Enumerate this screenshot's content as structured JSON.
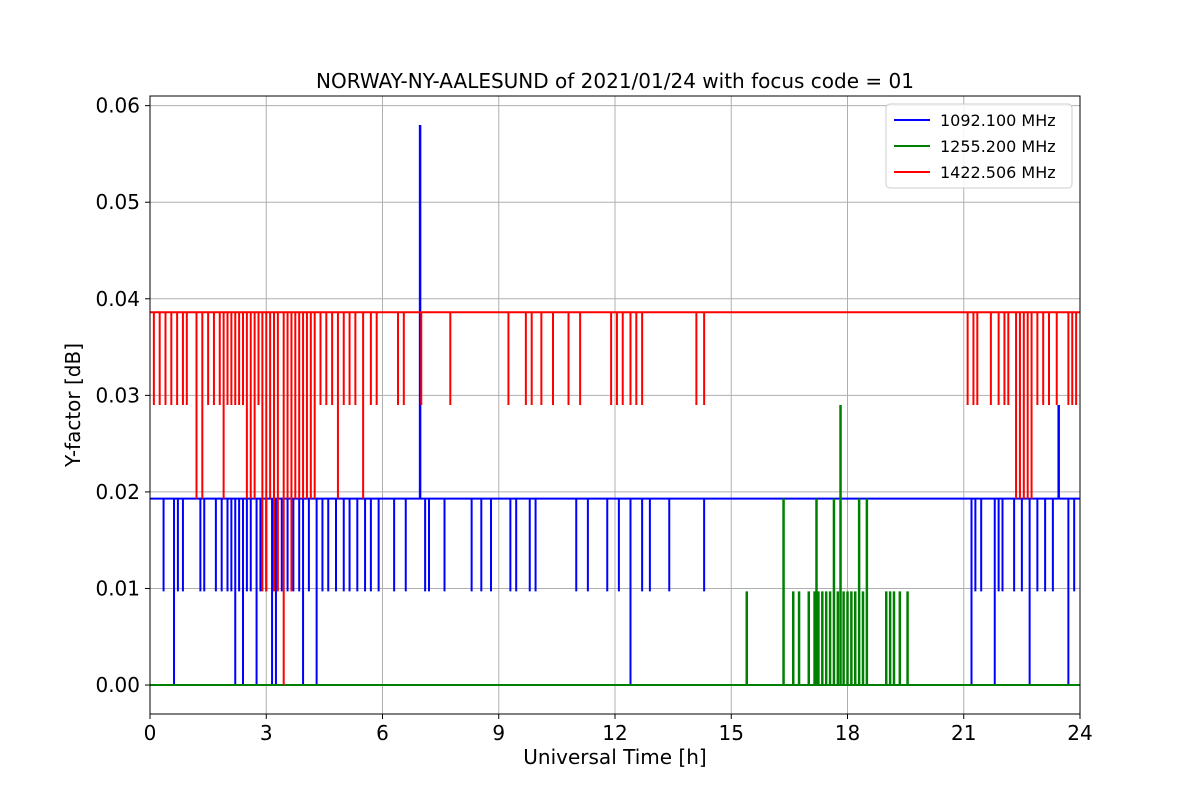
{
  "chart_data": {
    "type": "line",
    "title": "NORWAY-NY-AALESUND of 2021/01/24 with focus code = 01",
    "xlabel": "Universal Time [h]",
    "ylabel": "Y-factor [dB]",
    "xlim": [
      0,
      24
    ],
    "ylim": [
      -0.003,
      0.061
    ],
    "xticks": [
      0,
      3,
      6,
      9,
      12,
      15,
      18,
      21,
      24
    ],
    "xtick_labels": [
      "0",
      "3",
      "6",
      "9",
      "12",
      "15",
      "18",
      "21",
      "24"
    ],
    "yticks": [
      0.0,
      0.01,
      0.02,
      0.03,
      0.04,
      0.05,
      0.06
    ],
    "ytick_labels": [
      "0.00",
      "0.01",
      "0.02",
      "0.03",
      "0.04",
      "0.05",
      "0.06"
    ],
    "grid": true,
    "legend_position": "top-right",
    "series": [
      {
        "name": "1092.100 MHz",
        "color": "#0000ff",
        "baseline": 0.0193,
        "dips": [
          {
            "x": 0.35,
            "y": 0.0097
          },
          {
            "x": 0.62,
            "y": 0.0
          },
          {
            "x": 0.72,
            "y": 0.0097
          },
          {
            "x": 0.85,
            "y": 0.0097
          },
          {
            "x": 1.3,
            "y": 0.0097
          },
          {
            "x": 1.4,
            "y": 0.0097
          },
          {
            "x": 1.7,
            "y": 0.0097
          },
          {
            "x": 1.85,
            "y": 0.0097
          },
          {
            "x": 2.0,
            "y": 0.0097
          },
          {
            "x": 2.1,
            "y": 0.0097
          },
          {
            "x": 2.2,
            "y": 0.0
          },
          {
            "x": 2.3,
            "y": 0.0097
          },
          {
            "x": 2.4,
            "y": 0.0
          },
          {
            "x": 2.5,
            "y": 0.0097
          },
          {
            "x": 2.6,
            "y": 0.0097
          },
          {
            "x": 2.75,
            "y": 0.0
          },
          {
            "x": 2.85,
            "y": 0.0097
          },
          {
            "x": 3.0,
            "y": 0.0097
          },
          {
            "x": 3.15,
            "y": 0.0
          },
          {
            "x": 3.25,
            "y": 0.0
          },
          {
            "x": 3.4,
            "y": 0.0097
          },
          {
            "x": 3.55,
            "y": 0.0097
          },
          {
            "x": 3.7,
            "y": 0.0097
          },
          {
            "x": 3.85,
            "y": 0.0097
          },
          {
            "x": 3.95,
            "y": 0.0
          },
          {
            "x": 4.1,
            "y": 0.0097
          },
          {
            "x": 4.3,
            "y": 0.0
          },
          {
            "x": 4.45,
            "y": 0.0097
          },
          {
            "x": 4.6,
            "y": 0.0097
          },
          {
            "x": 4.8,
            "y": 0.0097
          },
          {
            "x": 5.0,
            "y": 0.0097
          },
          {
            "x": 5.15,
            "y": 0.0097
          },
          {
            "x": 5.35,
            "y": 0.0097
          },
          {
            "x": 5.55,
            "y": 0.0097
          },
          {
            "x": 5.7,
            "y": 0.0097
          },
          {
            "x": 5.9,
            "y": 0.0097
          },
          {
            "x": 6.3,
            "y": 0.0097
          },
          {
            "x": 6.6,
            "y": 0.0097
          },
          {
            "x": 7.1,
            "y": 0.0097
          },
          {
            "x": 7.2,
            "y": 0.0097
          },
          {
            "x": 7.6,
            "y": 0.0097
          },
          {
            "x": 8.3,
            "y": 0.0097
          },
          {
            "x": 8.55,
            "y": 0.0097
          },
          {
            "x": 8.8,
            "y": 0.0097
          },
          {
            "x": 9.3,
            "y": 0.0097
          },
          {
            "x": 9.45,
            "y": 0.0097
          },
          {
            "x": 9.8,
            "y": 0.0097
          },
          {
            "x": 9.95,
            "y": 0.0097
          },
          {
            "x": 11.0,
            "y": 0.0097
          },
          {
            "x": 11.3,
            "y": 0.0097
          },
          {
            "x": 11.8,
            "y": 0.0097
          },
          {
            "x": 12.1,
            "y": 0.0097
          },
          {
            "x": 12.4,
            "y": 0.0
          },
          {
            "x": 12.7,
            "y": 0.0097
          },
          {
            "x": 12.9,
            "y": 0.0097
          },
          {
            "x": 13.4,
            "y": 0.0097
          },
          {
            "x": 14.3,
            "y": 0.0097
          },
          {
            "x": 21.2,
            "y": 0.0
          },
          {
            "x": 21.3,
            "y": 0.0097
          },
          {
            "x": 21.45,
            "y": 0.0097
          },
          {
            "x": 21.8,
            "y": 0.0
          },
          {
            "x": 21.9,
            "y": 0.0097
          },
          {
            "x": 22.0,
            "y": 0.0097
          },
          {
            "x": 22.3,
            "y": 0.0097
          },
          {
            "x": 22.5,
            "y": 0.0097
          },
          {
            "x": 22.7,
            "y": 0.0
          },
          {
            "x": 22.9,
            "y": 0.0097
          },
          {
            "x": 23.1,
            "y": 0.0097
          },
          {
            "x": 23.3,
            "y": 0.0097
          },
          {
            "x": 23.7,
            "y": 0.0
          },
          {
            "x": 23.85,
            "y": 0.0097
          }
        ],
        "spikes": [
          {
            "x": 6.97,
            "y": 0.058
          },
          {
            "x": 23.45,
            "y": 0.029
          }
        ]
      },
      {
        "name": "1255.200 MHz",
        "color": "#008000",
        "baseline": 0.0,
        "spikes": [
          {
            "x": 15.4,
            "y": 0.0097
          },
          {
            "x": 16.35,
            "y": 0.0193
          },
          {
            "x": 16.6,
            "y": 0.0097
          },
          {
            "x": 16.75,
            "y": 0.0097
          },
          {
            "x": 17.0,
            "y": 0.0097
          },
          {
            "x": 17.15,
            "y": 0.0097
          },
          {
            "x": 17.2,
            "y": 0.0193
          },
          {
            "x": 17.25,
            "y": 0.0097
          },
          {
            "x": 17.35,
            "y": 0.0097
          },
          {
            "x": 17.45,
            "y": 0.0097
          },
          {
            "x": 17.55,
            "y": 0.0097
          },
          {
            "x": 17.65,
            "y": 0.0193
          },
          {
            "x": 17.75,
            "y": 0.0097
          },
          {
            "x": 17.82,
            "y": 0.029
          },
          {
            "x": 17.9,
            "y": 0.0097
          },
          {
            "x": 18.0,
            "y": 0.0097
          },
          {
            "x": 18.1,
            "y": 0.0097
          },
          {
            "x": 18.2,
            "y": 0.0097
          },
          {
            "x": 18.3,
            "y": 0.0193
          },
          {
            "x": 18.4,
            "y": 0.0097
          },
          {
            "x": 18.5,
            "y": 0.0193
          },
          {
            "x": 19.0,
            "y": 0.0097
          },
          {
            "x": 19.1,
            "y": 0.0097
          },
          {
            "x": 19.2,
            "y": 0.0097
          },
          {
            "x": 19.35,
            "y": 0.0097
          },
          {
            "x": 19.55,
            "y": 0.0097
          }
        ]
      },
      {
        "name": "1422.506 MHz",
        "color": "#ff0000",
        "baseline": 0.0386,
        "dips": [
          {
            "x": 0.1,
            "y": 0.029
          },
          {
            "x": 0.25,
            "y": 0.029
          },
          {
            "x": 0.4,
            "y": 0.029
          },
          {
            "x": 0.55,
            "y": 0.029
          },
          {
            "x": 0.7,
            "y": 0.029
          },
          {
            "x": 0.85,
            "y": 0.029
          },
          {
            "x": 0.95,
            "y": 0.029
          },
          {
            "x": 1.2,
            "y": 0.0193
          },
          {
            "x": 1.35,
            "y": 0.0193
          },
          {
            "x": 1.5,
            "y": 0.029
          },
          {
            "x": 1.65,
            "y": 0.029
          },
          {
            "x": 1.8,
            "y": 0.029
          },
          {
            "x": 1.9,
            "y": 0.0193
          },
          {
            "x": 2.0,
            "y": 0.029
          },
          {
            "x": 2.1,
            "y": 0.029
          },
          {
            "x": 2.2,
            "y": 0.029
          },
          {
            "x": 2.3,
            "y": 0.029
          },
          {
            "x": 2.4,
            "y": 0.029
          },
          {
            "x": 2.5,
            "y": 0.0193
          },
          {
            "x": 2.6,
            "y": 0.0193
          },
          {
            "x": 2.7,
            "y": 0.0193
          },
          {
            "x": 2.8,
            "y": 0.029
          },
          {
            "x": 2.9,
            "y": 0.0097
          },
          {
            "x": 3.0,
            "y": 0.0097
          },
          {
            "x": 3.1,
            "y": 0.0193
          },
          {
            "x": 3.2,
            "y": 0.0097
          },
          {
            "x": 3.3,
            "y": 0.0097
          },
          {
            "x": 3.45,
            "y": 0.0
          },
          {
            "x": 3.55,
            "y": 0.0193
          },
          {
            "x": 3.65,
            "y": 0.0097
          },
          {
            "x": 3.75,
            "y": 0.0193
          },
          {
            "x": 3.85,
            "y": 0.0193
          },
          {
            "x": 3.95,
            "y": 0.0193
          },
          {
            "x": 4.05,
            "y": 0.0193
          },
          {
            "x": 4.15,
            "y": 0.0193
          },
          {
            "x": 4.25,
            "y": 0.0193
          },
          {
            "x": 4.4,
            "y": 0.029
          },
          {
            "x": 4.55,
            "y": 0.029
          },
          {
            "x": 4.7,
            "y": 0.029
          },
          {
            "x": 4.85,
            "y": 0.0193
          },
          {
            "x": 5.0,
            "y": 0.029
          },
          {
            "x": 5.15,
            "y": 0.029
          },
          {
            "x": 5.3,
            "y": 0.029
          },
          {
            "x": 5.5,
            "y": 0.0193
          },
          {
            "x": 5.7,
            "y": 0.029
          },
          {
            "x": 5.85,
            "y": 0.029
          },
          {
            "x": 6.4,
            "y": 0.029
          },
          {
            "x": 6.55,
            "y": 0.029
          },
          {
            "x": 7.0,
            "y": 0.029
          },
          {
            "x": 7.75,
            "y": 0.029
          },
          {
            "x": 9.25,
            "y": 0.029
          },
          {
            "x": 9.7,
            "y": 0.029
          },
          {
            "x": 9.85,
            "y": 0.029
          },
          {
            "x": 10.1,
            "y": 0.029
          },
          {
            "x": 10.4,
            "y": 0.029
          },
          {
            "x": 10.8,
            "y": 0.029
          },
          {
            "x": 11.1,
            "y": 0.029
          },
          {
            "x": 11.9,
            "y": 0.029
          },
          {
            "x": 12.05,
            "y": 0.029
          },
          {
            "x": 12.2,
            "y": 0.029
          },
          {
            "x": 12.4,
            "y": 0.029
          },
          {
            "x": 12.55,
            "y": 0.029
          },
          {
            "x": 12.7,
            "y": 0.029
          },
          {
            "x": 14.1,
            "y": 0.029
          },
          {
            "x": 14.3,
            "y": 0.029
          },
          {
            "x": 21.1,
            "y": 0.029
          },
          {
            "x": 21.25,
            "y": 0.029
          },
          {
            "x": 21.35,
            "y": 0.029
          },
          {
            "x": 21.7,
            "y": 0.029
          },
          {
            "x": 21.9,
            "y": 0.029
          },
          {
            "x": 22.05,
            "y": 0.029
          },
          {
            "x": 22.15,
            "y": 0.029
          },
          {
            "x": 22.35,
            "y": 0.0193
          },
          {
            "x": 22.45,
            "y": 0.0193
          },
          {
            "x": 22.55,
            "y": 0.0193
          },
          {
            "x": 22.65,
            "y": 0.0193
          },
          {
            "x": 22.75,
            "y": 0.0193
          },
          {
            "x": 22.9,
            "y": 0.029
          },
          {
            "x": 23.05,
            "y": 0.029
          },
          {
            "x": 23.2,
            "y": 0.029
          },
          {
            "x": 23.4,
            "y": 0.029
          },
          {
            "x": 23.7,
            "y": 0.029
          },
          {
            "x": 23.8,
            "y": 0.029
          },
          {
            "x": 23.9,
            "y": 0.029
          }
        ]
      }
    ]
  }
}
